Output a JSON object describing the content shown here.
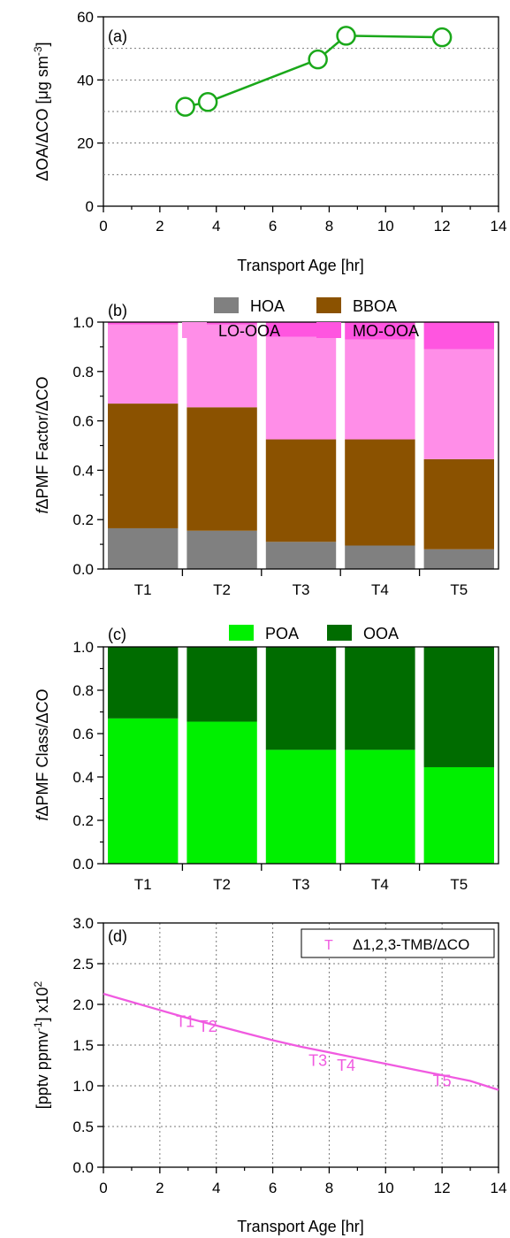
{
  "chart_data": [
    {
      "id": "a",
      "type": "line",
      "panel_label": "(a)",
      "xlabel": "Transport Age [hr]",
      "ylabel_main": "ΔOA/ΔCO [μg sm",
      "ylabel_sup": "-3",
      "ylabel_end": "]",
      "xlim": [
        0,
        14
      ],
      "ylim": [
        0,
        60
      ],
      "xticks": [
        "0",
        "2",
        "4",
        "6",
        "8",
        "10",
        "12",
        "14"
      ],
      "yticks": [
        "0",
        "20",
        "40",
        "60"
      ],
      "grid": "horizontal dotted",
      "color": "#1aa81a",
      "x": [
        2.9,
        3.7,
        7.6,
        8.6,
        12.0
      ],
      "y": [
        31.5,
        33,
        46.5,
        54,
        53.5
      ]
    },
    {
      "id": "b",
      "type": "bar",
      "stacked": true,
      "panel_label": "(b)",
      "ylabel_italic": "f",
      "ylabel_main": "ΔPMF Factor/ΔCO",
      "categories": [
        "T1",
        "T2",
        "T3",
        "T4",
        "T5"
      ],
      "ylim": [
        0,
        1.0
      ],
      "yticks": [
        "0.0",
        "0.2",
        "0.4",
        "0.6",
        "0.8",
        "1.0"
      ],
      "legend_placement": "top",
      "series": [
        {
          "name": "HOA",
          "color": "#808080",
          "values": [
            0.165,
            0.155,
            0.11,
            0.095,
            0.08
          ]
        },
        {
          "name": "BBOA",
          "color": "#8b5200",
          "values": [
            0.505,
            0.5,
            0.415,
            0.43,
            0.365
          ]
        },
        {
          "name": "LO-OOA",
          "color": "#ff8ee8",
          "values": [
            0.32,
            0.335,
            0.415,
            0.405,
            0.445
          ]
        },
        {
          "name": "MO-OOA",
          "color": "#ff55e0",
          "values": [
            0.01,
            0.01,
            0.06,
            0.07,
            0.11
          ]
        }
      ]
    },
    {
      "id": "c",
      "type": "bar",
      "stacked": true,
      "panel_label": "(c)",
      "ylabel_italic": "f",
      "ylabel_main": "ΔPMF Class/ΔCO",
      "categories": [
        "T1",
        "T2",
        "T3",
        "T4",
        "T5"
      ],
      "ylim": [
        0,
        1.0
      ],
      "yticks": [
        "0.0",
        "0.2",
        "0.4",
        "0.6",
        "0.8",
        "1.0"
      ],
      "legend_placement": "top",
      "series": [
        {
          "name": "POA",
          "color": "#00f000",
          "values": [
            0.67,
            0.655,
            0.525,
            0.525,
            0.445
          ]
        },
        {
          "name": "OOA",
          "color": "#006c00",
          "values": [
            0.33,
            0.345,
            0.475,
            0.475,
            0.555
          ]
        }
      ]
    },
    {
      "id": "d",
      "type": "line",
      "panel_label": "(d)",
      "xlabel": "Transport Age [hr]",
      "ylabel_main": "[pptv ppmv",
      "ylabel_sup": "-1",
      "ylabel_end": "] x10",
      "ylabel_sup2": "2",
      "xlim": [
        0,
        14
      ],
      "ylim": [
        0,
        3.0
      ],
      "xticks": [
        "0",
        "2",
        "4",
        "6",
        "8",
        "10",
        "12",
        "14"
      ],
      "yticks": [
        "0.0",
        "0.5",
        "1.0",
        "1.5",
        "2.0",
        "2.5",
        "3.0"
      ],
      "grid": "both dotted",
      "legend_placement": "top-right",
      "legend_marker": "T",
      "legend_label": "Δ1,2,3-TMB/ΔCO",
      "color": "#f05ae0",
      "curve_x": [
        0,
        1,
        2,
        3,
        4,
        5,
        6,
        7,
        8,
        9,
        10,
        11,
        12,
        13,
        14
      ],
      "curve_y": [
        2.13,
        2.03,
        1.93,
        1.83,
        1.74,
        1.65,
        1.56,
        1.48,
        1.41,
        1.34,
        1.27,
        1.2,
        1.13,
        1.06,
        0.95
      ],
      "points": [
        {
          "label": "T1",
          "x": 2.9,
          "y": 1.8
        },
        {
          "label": "T2",
          "x": 3.7,
          "y": 1.74
        },
        {
          "label": "T3",
          "x": 7.6,
          "y": 1.32
        },
        {
          "label": "T4",
          "x": 8.6,
          "y": 1.26
        },
        {
          "label": "T5",
          "x": 12.0,
          "y": 1.07
        }
      ]
    }
  ]
}
